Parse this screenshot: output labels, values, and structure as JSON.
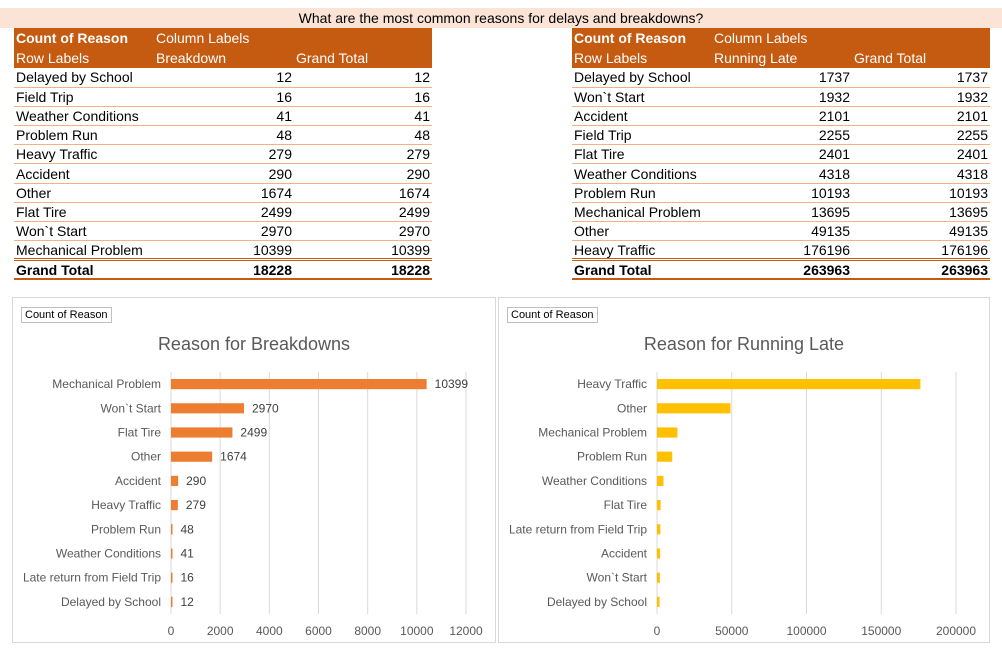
{
  "page_title": "What are the most common reasons for delays and breakdowns?",
  "pivot_left": {
    "count_label": "Count of Reason",
    "column_labels": "Column Labels",
    "row_labels": "Row Labels",
    "col1": "Breakdown",
    "col2": "Grand Total",
    "rows": [
      {
        "label": "Delayed by School",
        "v1": "12",
        "v2": "12"
      },
      {
        "label": "Field Trip",
        "v1": "16",
        "v2": "16"
      },
      {
        "label": "Weather Conditions",
        "v1": "41",
        "v2": "41"
      },
      {
        "label": "Problem Run",
        "v1": "48",
        "v2": "48"
      },
      {
        "label": "Heavy Traffic",
        "v1": "279",
        "v2": "279"
      },
      {
        "label": "Accident",
        "v1": "290",
        "v2": "290"
      },
      {
        "label": "Other",
        "v1": "1674",
        "v2": "1674"
      },
      {
        "label": "Flat Tire",
        "v1": "2499",
        "v2": "2499"
      },
      {
        "label": "Won`t Start",
        "v1": "2970",
        "v2": "2970"
      },
      {
        "label": "Mechanical Problem",
        "v1": "10399",
        "v2": "10399"
      }
    ],
    "total": {
      "label": "Grand Total",
      "v1": "18228",
      "v2": "18228"
    }
  },
  "pivot_right": {
    "count_label": "Count of Reason",
    "column_labels": "Column Labels",
    "row_labels": "Row Labels",
    "col1": "Running Late",
    "col2": "Grand Total",
    "rows": [
      {
        "label": "Delayed by School",
        "v1": "1737",
        "v2": "1737"
      },
      {
        "label": "Won`t Start",
        "v1": "1932",
        "v2": "1932"
      },
      {
        "label": "Accident",
        "v1": "2101",
        "v2": "2101"
      },
      {
        "label": "Field Trip",
        "v1": "2255",
        "v2": "2255"
      },
      {
        "label": "Flat Tire",
        "v1": "2401",
        "v2": "2401"
      },
      {
        "label": "Weather Conditions",
        "v1": "4318",
        "v2": "4318"
      },
      {
        "label": "Problem Run",
        "v1": "10193",
        "v2": "10193"
      },
      {
        "label": "Mechanical Problem",
        "v1": "13695",
        "v2": "13695"
      },
      {
        "label": "Other",
        "v1": "49135",
        "v2": "49135"
      },
      {
        "label": "Heavy Traffic",
        "v1": "176196",
        "v2": "176196"
      }
    ],
    "total": {
      "label": "Grand Total",
      "v1": "263963",
      "v2": "263963"
    }
  },
  "chart_data": [
    {
      "type": "bar",
      "orientation": "horizontal",
      "field_button": "Count of Reason",
      "title": "Reason for Breakdowns",
      "categories": [
        "Mechanical Problem",
        "Won`t Start",
        "Flat Tire",
        "Other",
        "Accident",
        "Heavy Traffic",
        "Problem Run",
        "Weather Conditions",
        "Late return from Field Trip",
        "Delayed by School"
      ],
      "values": [
        10399,
        2970,
        2499,
        1674,
        290,
        279,
        48,
        41,
        16,
        12
      ],
      "data_labels": true,
      "xlim": [
        0,
        12000
      ],
      "xticks": [
        0,
        2000,
        4000,
        6000,
        8000,
        10000,
        12000
      ],
      "grid": true,
      "color": "#ed7d31"
    },
    {
      "type": "bar",
      "orientation": "horizontal",
      "field_button": "Count of Reason",
      "title": "Reason for Running Late",
      "categories": [
        "Heavy Traffic",
        "Other",
        "Mechanical Problem",
        "Problem Run",
        "Weather Conditions",
        "Flat Tire",
        "Late return from Field Trip",
        "Accident",
        "Won`t Start",
        "Delayed by School"
      ],
      "values": [
        176196,
        49135,
        13695,
        10193,
        4318,
        2401,
        2255,
        2101,
        1932,
        1737
      ],
      "data_labels": false,
      "xlim": [
        0,
        200000
      ],
      "xticks": [
        0,
        50000,
        100000,
        150000,
        200000
      ],
      "grid": true,
      "color": "#ffc000"
    }
  ]
}
